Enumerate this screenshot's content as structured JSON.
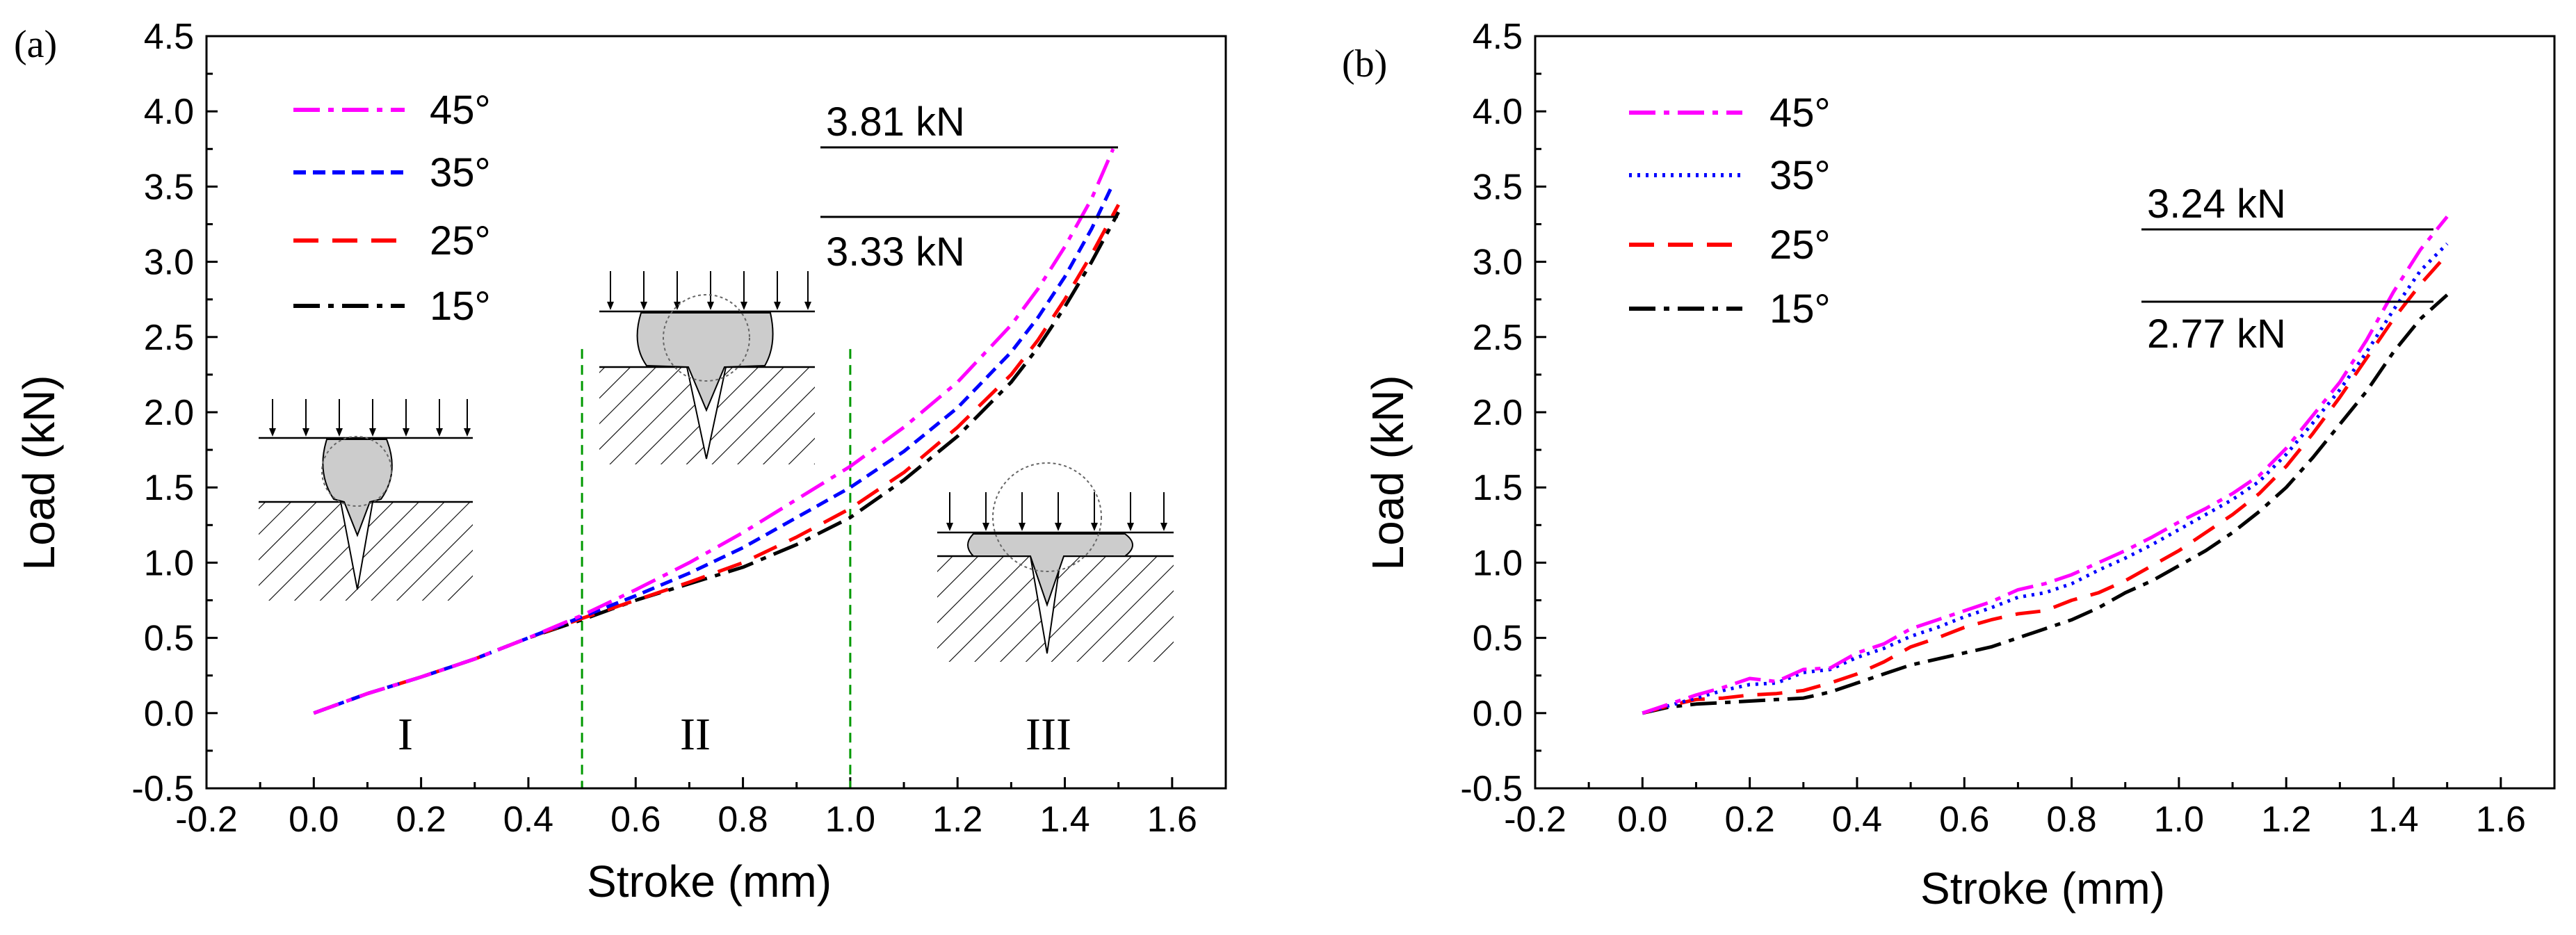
{
  "chart_data": [
    {
      "type": "line",
      "panel_label": "(a)",
      "xlabel": "Stroke (mm)",
      "ylabel": "Load (kN)",
      "xlim": [
        -0.2,
        1.7
      ],
      "ylim": [
        -0.5,
        4.5
      ],
      "xticks": [
        "-0.2",
        "0.0",
        "0.2",
        "0.4",
        "0.6",
        "0.8",
        "1.0",
        "1.2",
        "1.4",
        "1.6"
      ],
      "yticks": [
        "-0.5",
        "0.0",
        "0.5",
        "1.0",
        "1.5",
        "2.0",
        "2.5",
        "3.0",
        "3.5",
        "4.0",
        "4.5"
      ],
      "legend": [
        "45°",
        "35°",
        "25°",
        "15°"
      ],
      "series": [
        {
          "name": "45°",
          "color": "#ff00ff",
          "dash": "dashdot",
          "x": [
            0,
            0.1,
            0.2,
            0.3,
            0.4,
            0.5,
            0.6,
            0.7,
            0.8,
            0.9,
            1.0,
            1.1,
            1.2,
            1.3,
            1.35,
            1.4,
            1.45,
            1.49
          ],
          "y": [
            0,
            0.13,
            0.24,
            0.36,
            0.5,
            0.65,
            0.82,
            1.0,
            1.2,
            1.42,
            1.64,
            1.9,
            2.2,
            2.58,
            2.82,
            3.1,
            3.42,
            3.75
          ]
        },
        {
          "name": "35°",
          "color": "#0000ff",
          "dash": "dashed",
          "x": [
            0,
            0.1,
            0.2,
            0.3,
            0.4,
            0.5,
            0.6,
            0.7,
            0.8,
            0.9,
            1.0,
            1.1,
            1.2,
            1.3,
            1.35,
            1.4,
            1.45,
            1.49
          ],
          "y": [
            0,
            0.13,
            0.24,
            0.36,
            0.5,
            0.64,
            0.78,
            0.93,
            1.1,
            1.3,
            1.5,
            1.74,
            2.03,
            2.4,
            2.63,
            2.9,
            3.22,
            3.52
          ]
        },
        {
          "name": "25°",
          "color": "#ff0000",
          "dash": "longdash",
          "x": [
            0,
            0.1,
            0.2,
            0.3,
            0.4,
            0.5,
            0.6,
            0.7,
            0.8,
            0.9,
            1.0,
            1.1,
            1.2,
            1.3,
            1.35,
            1.4,
            1.45,
            1.5
          ],
          "y": [
            0,
            0.13,
            0.24,
            0.36,
            0.5,
            0.63,
            0.75,
            0.87,
            1.0,
            1.17,
            1.36,
            1.6,
            1.9,
            2.25,
            2.48,
            2.75,
            3.05,
            3.38
          ]
        },
        {
          "name": "15°",
          "color": "#000000",
          "dash": "dashdot",
          "x": [
            0,
            0.1,
            0.2,
            0.3,
            0.4,
            0.5,
            0.6,
            0.7,
            0.8,
            0.9,
            1.0,
            1.1,
            1.2,
            1.3,
            1.35,
            1.4,
            1.45,
            1.5
          ],
          "y": [
            0,
            0.13,
            0.24,
            0.36,
            0.5,
            0.62,
            0.75,
            0.86,
            0.97,
            1.12,
            1.3,
            1.55,
            1.84,
            2.2,
            2.43,
            2.7,
            3.0,
            3.33
          ]
        }
      ],
      "vlines": [
        0.5,
        1.0
      ],
      "stage_labels": [
        "I",
        "II",
        "III"
      ],
      "annotations": [
        {
          "text": "3.81 kN",
          "y": 3.81,
          "position": "above"
        },
        {
          "text": "3.33 kN",
          "y": 3.33,
          "position": "below"
        }
      ]
    },
    {
      "type": "line",
      "panel_label": "(b)",
      "xlabel": "Stroke (mm)",
      "ylabel": "Load (kN)",
      "xlim": [
        -0.2,
        1.7
      ],
      "ylim": [
        -0.5,
        4.5
      ],
      "xticks": [
        "-0.2",
        "0.0",
        "0.2",
        "0.4",
        "0.6",
        "0.8",
        "1.0",
        "1.2",
        "1.4",
        "1.6"
      ],
      "yticks": [
        "-0.5",
        "0.0",
        "0.5",
        "1.0",
        "1.5",
        "2.0",
        "2.5",
        "3.0",
        "3.5",
        "4.0",
        "4.5"
      ],
      "legend": [
        "45°",
        "35°",
        "25°",
        "15°"
      ],
      "series": [
        {
          "name": "45°",
          "color": "#ff00ff",
          "dash": "dashdot",
          "x": [
            0,
            0.05,
            0.1,
            0.15,
            0.2,
            0.25,
            0.3,
            0.35,
            0.4,
            0.45,
            0.5,
            0.55,
            0.6,
            0.65,
            0.7,
            0.75,
            0.8,
            0.85,
            0.9,
            0.95,
            1.0,
            1.05,
            1.1,
            1.15,
            1.2,
            1.25,
            1.3,
            1.35,
            1.4,
            1.45,
            1.5
          ],
          "y": [
            0,
            0.06,
            0.12,
            0.17,
            0.23,
            0.21,
            0.29,
            0.3,
            0.4,
            0.46,
            0.56,
            0.62,
            0.68,
            0.74,
            0.82,
            0.86,
            0.92,
            1.0,
            1.08,
            1.17,
            1.27,
            1.36,
            1.46,
            1.58,
            1.76,
            1.98,
            2.2,
            2.48,
            2.8,
            3.08,
            3.3
          ]
        },
        {
          "name": "35°",
          "color": "#0000ff",
          "dash": "dotted",
          "x": [
            0,
            0.05,
            0.1,
            0.15,
            0.2,
            0.25,
            0.3,
            0.35,
            0.4,
            0.45,
            0.5,
            0.55,
            0.6,
            0.65,
            0.7,
            0.75,
            0.8,
            0.85,
            0.9,
            0.95,
            1.0,
            1.05,
            1.1,
            1.15,
            1.2,
            1.25,
            1.3,
            1.35,
            1.4,
            1.45,
            1.5
          ],
          "y": [
            0,
            0.05,
            0.1,
            0.15,
            0.19,
            0.2,
            0.27,
            0.29,
            0.37,
            0.43,
            0.51,
            0.57,
            0.64,
            0.7,
            0.77,
            0.8,
            0.86,
            0.95,
            1.03,
            1.12,
            1.22,
            1.32,
            1.42,
            1.54,
            1.72,
            1.93,
            2.15,
            2.4,
            2.68,
            2.94,
            3.12
          ]
        },
        {
          "name": "25°",
          "color": "#ff0000",
          "dash": "longdash",
          "x": [
            0,
            0.05,
            0.1,
            0.15,
            0.2,
            0.25,
            0.3,
            0.35,
            0.4,
            0.45,
            0.5,
            0.55,
            0.6,
            0.65,
            0.7,
            0.75,
            0.8,
            0.85,
            0.9,
            0.95,
            1.0,
            1.05,
            1.1,
            1.15,
            1.2,
            1.25,
            1.3,
            1.35,
            1.4,
            1.45,
            1.5
          ],
          "y": [
            0,
            0.05,
            0.09,
            0.1,
            0.12,
            0.13,
            0.15,
            0.2,
            0.26,
            0.34,
            0.44,
            0.5,
            0.57,
            0.62,
            0.66,
            0.68,
            0.75,
            0.8,
            0.88,
            0.98,
            1.08,
            1.2,
            1.32,
            1.46,
            1.64,
            1.86,
            2.1,
            2.36,
            2.62,
            2.85,
            3.05
          ]
        },
        {
          "name": "15°",
          "color": "#000000",
          "dash": "dashdot",
          "x": [
            0,
            0.05,
            0.1,
            0.15,
            0.2,
            0.25,
            0.3,
            0.35,
            0.4,
            0.45,
            0.5,
            0.55,
            0.6,
            0.65,
            0.7,
            0.75,
            0.8,
            0.85,
            0.9,
            0.95,
            1.0,
            1.05,
            1.1,
            1.15,
            1.2,
            1.25,
            1.3,
            1.35,
            1.4,
            1.45,
            1.5
          ],
          "y": [
            0,
            0.04,
            0.06,
            0.07,
            0.08,
            0.09,
            0.1,
            0.14,
            0.2,
            0.26,
            0.32,
            0.36,
            0.4,
            0.44,
            0.5,
            0.56,
            0.62,
            0.7,
            0.8,
            0.88,
            0.98,
            1.08,
            1.2,
            1.34,
            1.5,
            1.7,
            1.92,
            2.14,
            2.4,
            2.62,
            2.78
          ]
        }
      ],
      "annotations": [
        {
          "text": "3.24 kN",
          "y": 3.24,
          "position": "above"
        },
        {
          "text": "2.77 kN",
          "y": 2.77,
          "position": "below"
        }
      ]
    }
  ]
}
